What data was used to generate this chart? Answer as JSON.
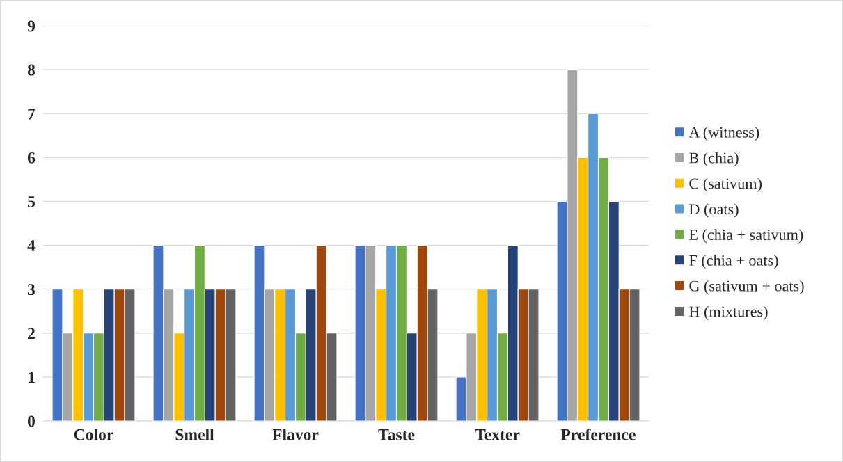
{
  "chart_data": {
    "type": "bar",
    "categories": [
      "Color",
      "Smell",
      "Flavor",
      "Taste",
      "Texter",
      "Preference"
    ],
    "series": [
      {
        "name": "A (witness)",
        "color": "#4472c4",
        "values": [
          3,
          4,
          4,
          4,
          1,
          5
        ]
      },
      {
        "name": "B (chia)",
        "color": "#a5a5a5",
        "values": [
          2,
          3,
          3,
          4,
          2,
          8
        ]
      },
      {
        "name": "C (sativum)",
        "color": "#ffc000",
        "values": [
          3,
          2,
          3,
          3,
          3,
          6
        ]
      },
      {
        "name": "D (oats)",
        "color": "#5b9bd5",
        "values": [
          2,
          3,
          3,
          4,
          3,
          7
        ]
      },
      {
        "name": "E (chia + sativum)",
        "color": "#70ad47",
        "values": [
          2,
          4,
          2,
          4,
          2,
          6
        ]
      },
      {
        "name": "F (chia + oats)",
        "color": "#264478",
        "values": [
          3,
          3,
          3,
          2,
          4,
          5
        ]
      },
      {
        "name": "G (sativum + oats)",
        "color": "#9e480e",
        "values": [
          3,
          3,
          4,
          4,
          3,
          3
        ]
      },
      {
        "name": "H (mixtures)",
        "color": "#636363",
        "values": [
          3,
          3,
          2,
          3,
          3,
          3
        ]
      }
    ],
    "ylim": [
      0,
      9
    ],
    "yticks": [
      0,
      1,
      2,
      3,
      4,
      5,
      6,
      7,
      8,
      9
    ],
    "grid": "y",
    "legend": "right"
  }
}
